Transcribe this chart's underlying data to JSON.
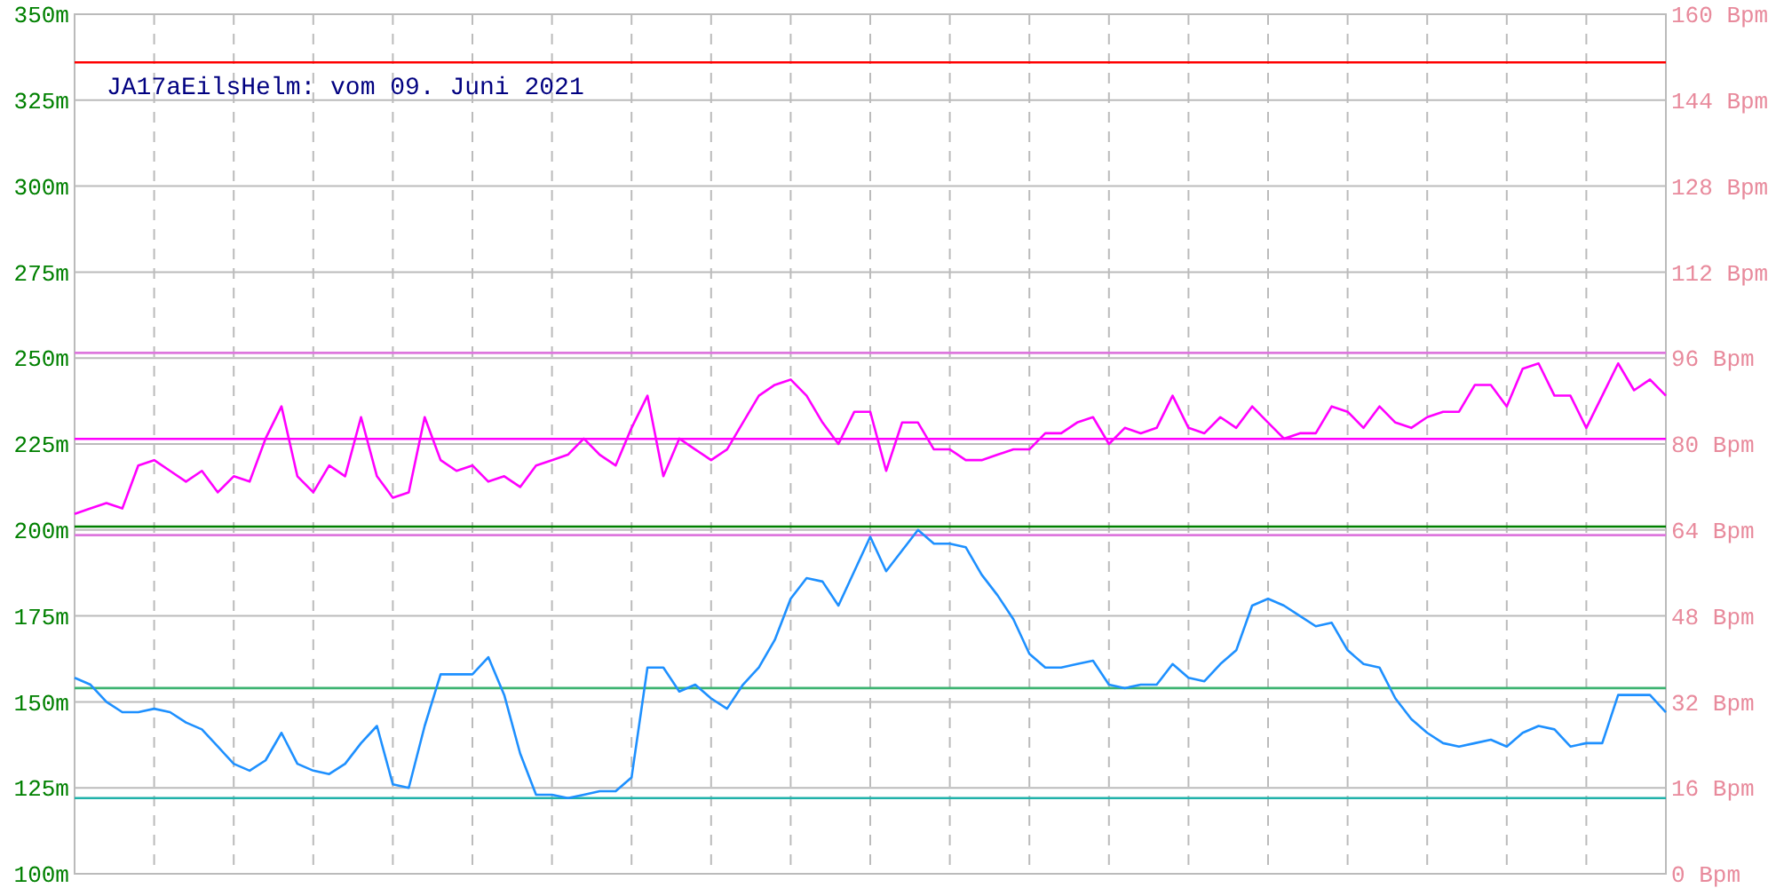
{
  "chart_data": {
    "type": "line",
    "title": "JA17aEilsHelm: vom 09. Juni 2021",
    "categories": [
      null,
      null,
      null,
      null,
      null,
      null,
      null,
      null,
      null,
      null,
      null,
      null,
      null,
      null,
      null,
      null,
      null,
      null,
      null,
      null,
      null,
      null,
      null,
      null,
      null,
      null,
      null,
      null,
      null,
      null,
      null,
      null,
      null,
      null,
      null,
      null,
      null,
      null,
      null,
      null,
      null,
      null,
      null,
      null,
      null,
      null,
      null,
      null,
      null,
      null,
      null,
      null,
      null,
      null,
      null,
      null,
      null,
      null,
      null,
      null,
      null,
      null,
      null,
      null,
      null,
      null,
      null,
      null,
      null,
      null,
      null,
      null,
      null,
      null,
      null,
      null,
      null,
      null,
      null,
      null,
      null,
      null,
      null,
      null,
      null,
      null,
      null,
      null,
      null,
      null,
      null,
      null,
      null,
      null,
      null,
      null,
      null,
      null,
      null,
      null,
      null
    ],
    "series": [
      {
        "color": "#1e90ff",
        "values": [
          157,
          155,
          150,
          147,
          147,
          148,
          147,
          144,
          142,
          137,
          132,
          130,
          133,
          141,
          132,
          130,
          129,
          132,
          138,
          143,
          126,
          125,
          143,
          158,
          158,
          158,
          163,
          152,
          135,
          123,
          123,
          122,
          123,
          124,
          124,
          128,
          160,
          160,
          153,
          155,
          151,
          148,
          155,
          160,
          168,
          180,
          186,
          185,
          178,
          188,
          198,
          188,
          194,
          200,
          196,
          196,
          195,
          187,
          181,
          174,
          164,
          160,
          160,
          161,
          162,
          155,
          154,
          155,
          155,
          161,
          157,
          156,
          161,
          165,
          178,
          180,
          178,
          175,
          172,
          173,
          165,
          161,
          160,
          151,
          145,
          141,
          138,
          137,
          138,
          139,
          137,
          141,
          143,
          142,
          137,
          138,
          138,
          152,
          152,
          152,
          147
        ]
      },
      {
        "color": "#ff00ff",
        "axis": "y2",
        "values": [
          67,
          68,
          69,
          68,
          76,
          77,
          75,
          73,
          75,
          71,
          74,
          73,
          81,
          87,
          74,
          71,
          76,
          74,
          85,
          74,
          70,
          71,
          85,
          77,
          75,
          76,
          73,
          74,
          72,
          76,
          77,
          78,
          81,
          78,
          76,
          83,
          89,
          74,
          81,
          79,
          77,
          79,
          84,
          89,
          91,
          92,
          89,
          84,
          80,
          86,
          86,
          75,
          84,
          84,
          79,
          79,
          77,
          77,
          78,
          79,
          79,
          82,
          82,
          84,
          85,
          80,
          83,
          82,
          83,
          89,
          83,
          82,
          85,
          83,
          87,
          84,
          81,
          82,
          82,
          87,
          86,
          83,
          87,
          84,
          83,
          85,
          86,
          86,
          91,
          91,
          87,
          94,
          95,
          89,
          89,
          83,
          89,
          95,
          90,
          92,
          89
        ]
      }
    ],
    "ylim": [
      100,
      350
    ],
    "yticks": [
      {
        "value": 100,
        "label": "100m"
      },
      {
        "value": 125,
        "label": "125m"
      },
      {
        "value": 150,
        "label": "150m"
      },
      {
        "value": 175,
        "label": "175m"
      },
      {
        "value": 200,
        "label": "200m"
      },
      {
        "value": 225,
        "label": "225m"
      },
      {
        "value": 250,
        "label": "250m"
      },
      {
        "value": 275,
        "label": "275m"
      },
      {
        "value": 300,
        "label": "300m"
      },
      {
        "value": 325,
        "label": "325m"
      },
      {
        "value": 350,
        "label": "350m"
      }
    ],
    "y2lim": [
      0,
      160
    ],
    "y2ticks": [
      {
        "value": 0,
        "label": "0 Bpm"
      },
      {
        "value": 16,
        "label": "16 Bpm"
      },
      {
        "value": 32,
        "label": "32 Bpm"
      },
      {
        "value": 48,
        "label": "48 Bpm"
      },
      {
        "value": 64,
        "label": "64 Bpm"
      },
      {
        "value": 80,
        "label": "80 Bpm"
      },
      {
        "value": 96,
        "label": "96 Bpm"
      },
      {
        "value": 112,
        "label": "112 Bpm"
      },
      {
        "value": 128,
        "label": "128 Bpm"
      },
      {
        "value": 144,
        "label": "144 Bpm"
      },
      {
        "value": 160,
        "label": "160 Bpm"
      }
    ],
    "grid": true,
    "ref_lines": [
      {
        "axis": "y",
        "value": 336,
        "color": "#ff0000"
      },
      {
        "axis": "y",
        "value": 251.5,
        "color": "#dd77dd"
      },
      {
        "axis": "y",
        "value": 226.5,
        "color": "#ff00ff"
      },
      {
        "axis": "y",
        "value": 201,
        "color": "#008000"
      },
      {
        "axis": "y",
        "value": 198.5,
        "color": "#dd77dd"
      },
      {
        "axis": "y",
        "value": 154,
        "color": "#3cb371"
      },
      {
        "axis": "y",
        "value": 122,
        "color": "#20b2aa"
      }
    ]
  }
}
